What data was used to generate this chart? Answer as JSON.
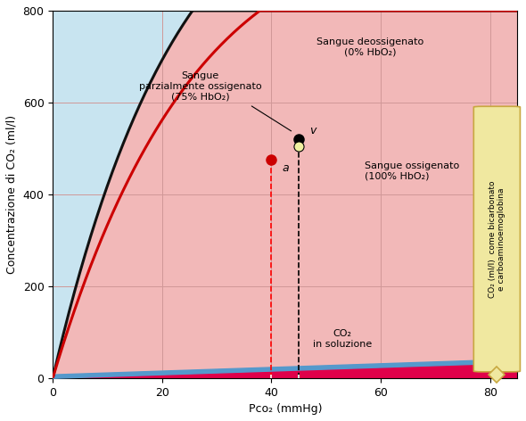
{
  "xlim": [
    0,
    85
  ],
  "ylim": [
    0,
    800
  ],
  "xticks": [
    0,
    20,
    40,
    60,
    80
  ],
  "yticks": [
    0,
    200,
    400,
    600,
    800
  ],
  "xlabel": "Pco₂ (mmHg)",
  "ylabel": "Concentrazione di CO₂ (ml/l)",
  "bg_light_blue": "#c8e4f0",
  "bg_pink": "#f2b8b8",
  "fill_magenta": "#e0004a",
  "fill_blue_strip": "#5599cc",
  "curve_black": "#111111",
  "curve_red": "#cc0000",
  "grid_color": "#d09898",
  "point_v_x": 45,
  "point_v_y": 520,
  "point_a_x": 40,
  "point_a_y": 475,
  "label_deossigenato": "Sangue deossigenato\n(0% HbO₂)",
  "label_parzialmente": "Sangue\nparzialmente ossigenato\n(75% HbO₂)",
  "label_ossigenato": "Sangue ossigenato\n(100% HbO₂)",
  "label_co2_soluzione": "CO₂\nin soluzione",
  "label_brace": "CO₂ (ml/l)  come bicarbonato\ne carboaminoemoglobina",
  "brace_color": "#f0e8a0",
  "brace_edge_color": "#c8a840",
  "fontsize_small": 8,
  "fontsize_axis": 9
}
